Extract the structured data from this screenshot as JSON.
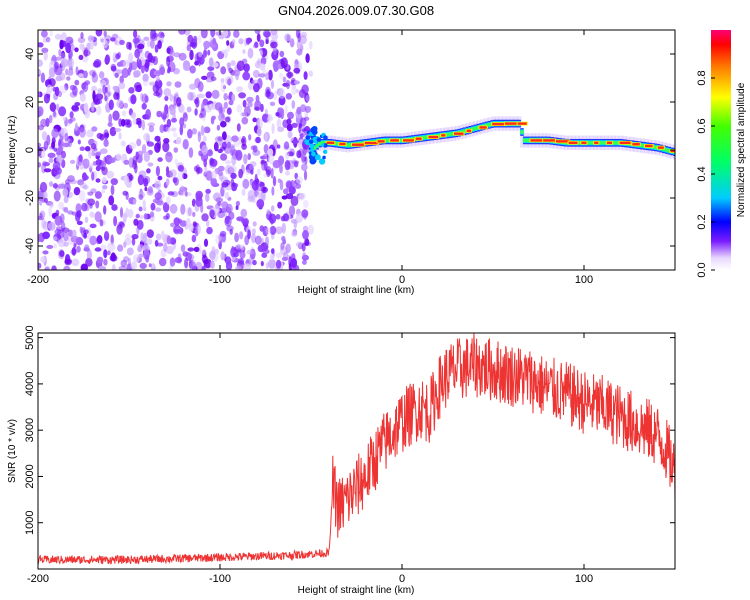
{
  "title": "GN04.2026.009.07.30.G08",
  "chart_data": [
    {
      "type": "heatmap",
      "xlabel": "Height of straight line (km)",
      "ylabel": "Frequency (Hz)",
      "xlim": [
        -200,
        150
      ],
      "ylim": [
        -50,
        50
      ],
      "xticks": [
        -200,
        -100,
        0,
        100
      ],
      "yticks": [
        -40,
        -20,
        0,
        20,
        40
      ],
      "noise_region": {
        "x_from": -200,
        "x_to": -50,
        "y_from": -50,
        "y_to": 50
      },
      "ridge": {
        "description": "dominant frequency vs height",
        "x": [
          -50,
          -45,
          -40,
          -30,
          -20,
          -10,
          0,
          10,
          20,
          30,
          40,
          50,
          60,
          65,
          66,
          70,
          80,
          90,
          100,
          110,
          120,
          130,
          140,
          150
        ],
        "y": [
          0,
          3,
          3,
          2,
          3,
          4,
          4,
          5,
          6,
          7,
          9,
          11,
          11,
          11,
          4,
          4,
          4,
          3,
          3,
          3,
          3,
          2,
          1,
          -1
        ]
      },
      "colorbar": {
        "label": "Normalized spectral amplitude",
        "range": [
          0.0,
          1.0
        ],
        "ticks": [
          "0.0",
          "0.2",
          "0.4",
          "0.6",
          "0.8"
        ]
      }
    },
    {
      "type": "line",
      "xlabel": "Height of straight line (km)",
      "ylabel": "SNR (10 * v/v)",
      "xlim": [
        -200,
        150
      ],
      "ylim": [
        0,
        5100
      ],
      "xticks": [
        -200,
        -100,
        0,
        100
      ],
      "yticks": [
        1000,
        2000,
        3000,
        4000,
        5000
      ],
      "color": "#ee3333",
      "series": [
        {
          "name": "SNR",
          "x": [
            -200,
            -150,
            -100,
            -60,
            -40,
            -38,
            -35,
            -30,
            -20,
            -10,
            0,
            10,
            15,
            20,
            25,
            30,
            40,
            50,
            60,
            70,
            80,
            90,
            100,
            110,
            120,
            130,
            140,
            145,
            150
          ],
          "y": [
            200,
            200,
            250,
            300,
            350,
            1800,
            1300,
            1500,
            2000,
            2700,
            3200,
            3500,
            3400,
            3900,
            4200,
            4300,
            4400,
            4300,
            4200,
            4100,
            3900,
            3800,
            3600,
            3500,
            3300,
            3100,
            2900,
            2600,
            2100
          ]
        }
      ]
    }
  ]
}
